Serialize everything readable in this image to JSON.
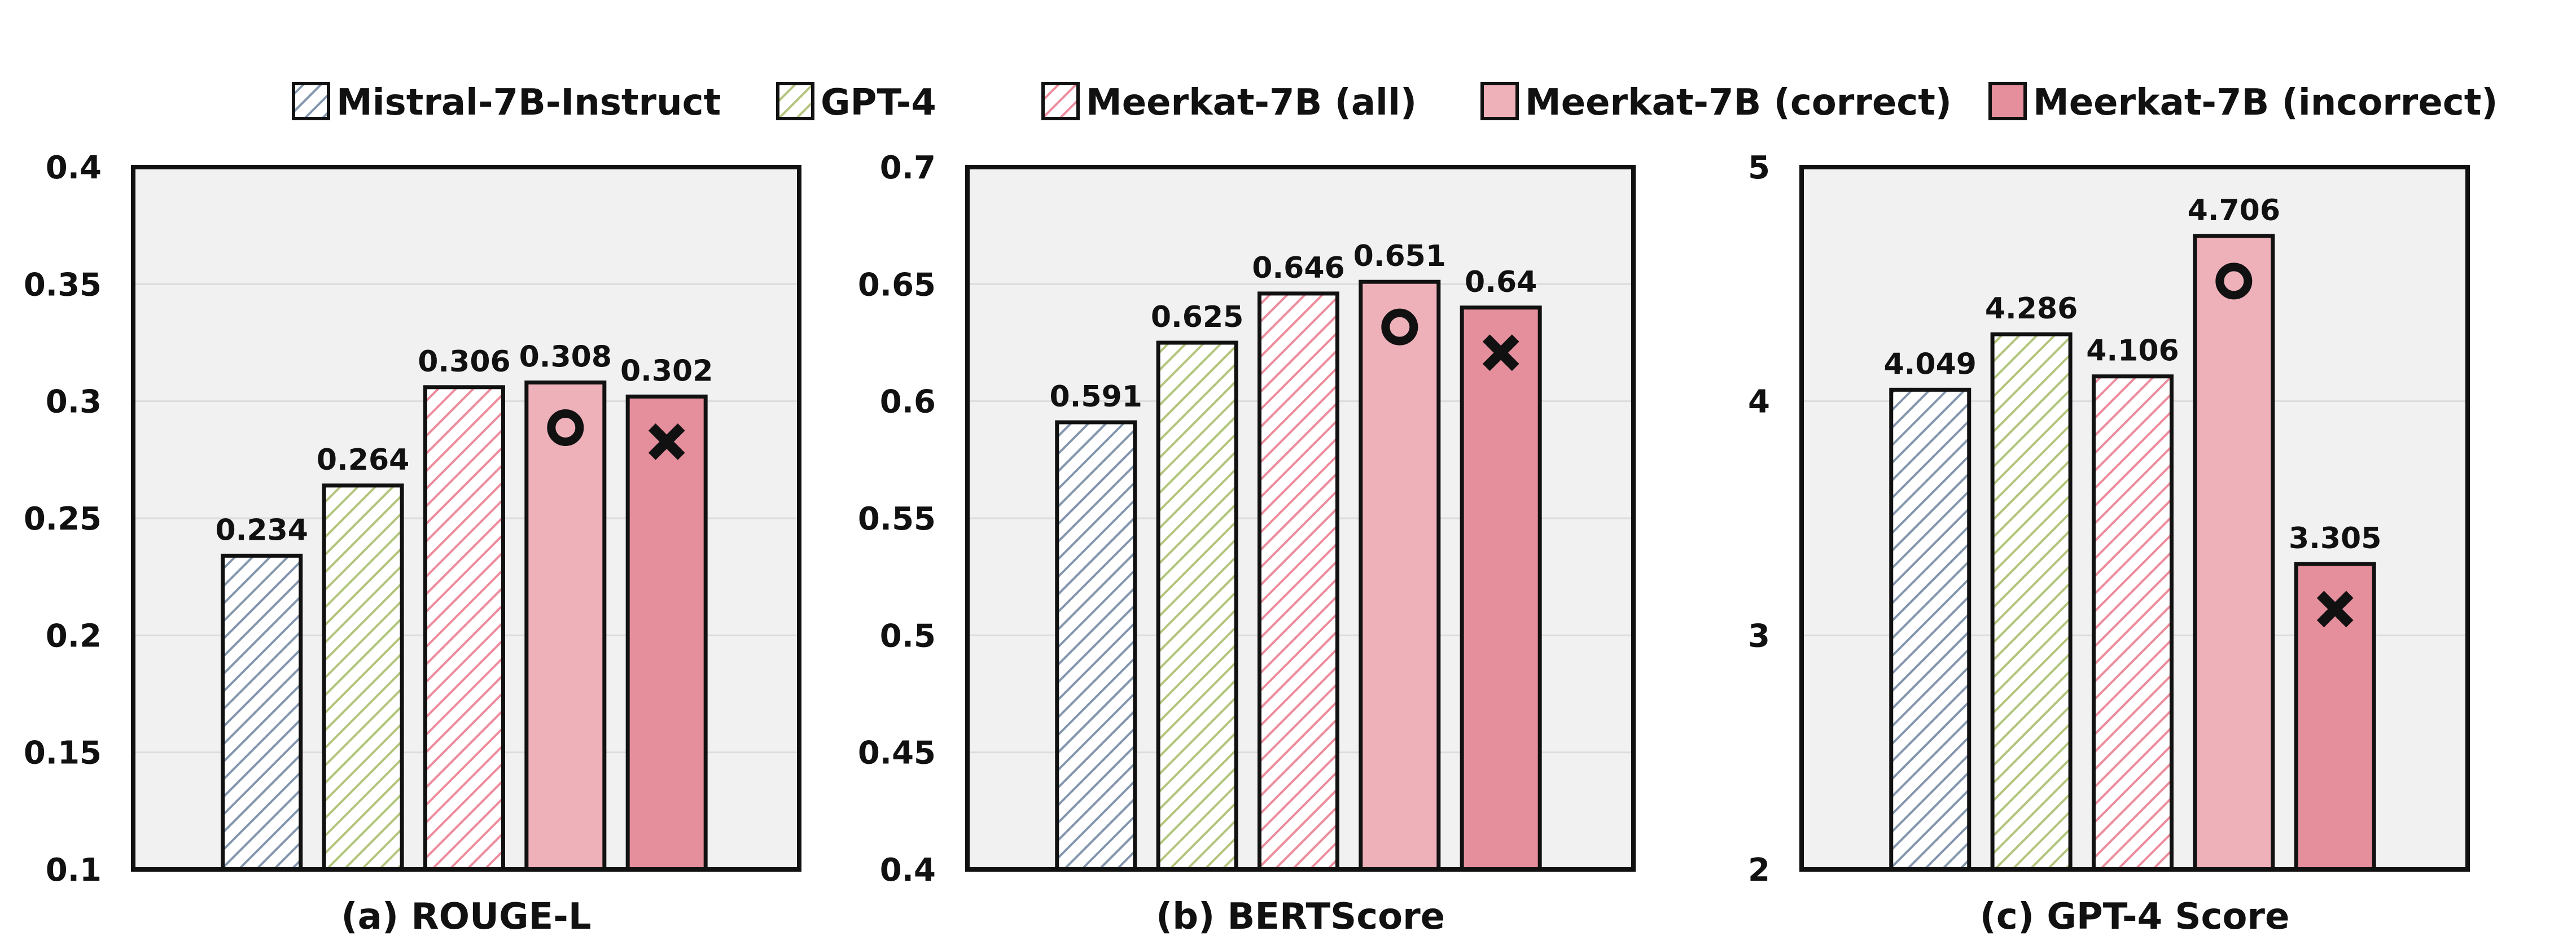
{
  "legend": {
    "items": [
      {
        "label": "Mistral-7B-Instruct",
        "color": "#a9b8c9",
        "hatched": true
      },
      {
        "label": "GPT-4",
        "color": "#cfdca0",
        "hatched": true
      },
      {
        "label": "Meerkat-7B (all)",
        "color": "#f0a0ad",
        "hatched": true
      },
      {
        "label": "Meerkat-7B (correct)",
        "color": "#eeb1ba",
        "hatched": false
      },
      {
        "label": "Meerkat-7B (incorrect)",
        "color": "#e58e9c",
        "hatched": false
      }
    ]
  },
  "colors": {
    "panel_background": "#f1f1f1",
    "gridline": "#dcdcdc",
    "border": "#111111",
    "hatch_mistral": "#8496ad",
    "hatch_gpt4": "#b3c57d",
    "hatch_meerkat_all": "#ec8c9c"
  },
  "markers": {
    "correct": "ring",
    "incorrect": "x"
  },
  "chart_data": [
    {
      "type": "bar",
      "xlabel": "(a) ROUGE-L",
      "ylim": [
        0.1,
        0.4
      ],
      "yticks": [
        "0.1",
        "0.15",
        "0.2",
        "0.25",
        "0.3",
        "0.35",
        "0.4"
      ],
      "grid": true,
      "categories": [
        "Mistral-7B-Instruct",
        "GPT-4",
        "Meerkat-7B (all)",
        "Meerkat-7B (correct)",
        "Meerkat-7B (incorrect)"
      ],
      "values": [
        0.234,
        0.264,
        0.306,
        0.308,
        0.302
      ],
      "value_labels": [
        "0.234",
        "0.264",
        "0.306",
        "0.308",
        "0.302"
      ]
    },
    {
      "type": "bar",
      "xlabel": "(b) BERTScore",
      "ylim": [
        0.4,
        0.7
      ],
      "yticks": [
        "0.4",
        "0.45",
        "0.5",
        "0.55",
        "0.6",
        "0.65",
        "0.7"
      ],
      "grid": true,
      "categories": [
        "Mistral-7B-Instruct",
        "GPT-4",
        "Meerkat-7B (all)",
        "Meerkat-7B (correct)",
        "Meerkat-7B (incorrect)"
      ],
      "values": [
        0.591,
        0.625,
        0.646,
        0.651,
        0.64
      ],
      "value_labels": [
        "0.591",
        "0.625",
        "0.646",
        "0.651",
        "0.64"
      ]
    },
    {
      "type": "bar",
      "xlabel": "(c) GPT-4 Score",
      "ylim": [
        2,
        5
      ],
      "yticks": [
        "2",
        "3",
        "4",
        "5"
      ],
      "grid": true,
      "categories": [
        "Mistral-7B-Instruct",
        "GPT-4",
        "Meerkat-7B (all)",
        "Meerkat-7B (correct)",
        "Meerkat-7B (incorrect)"
      ],
      "values": [
        4.049,
        4.286,
        4.106,
        4.706,
        3.305
      ],
      "value_labels": [
        "4.049",
        "4.286",
        "4.106",
        "4.706",
        "3.305"
      ]
    }
  ]
}
